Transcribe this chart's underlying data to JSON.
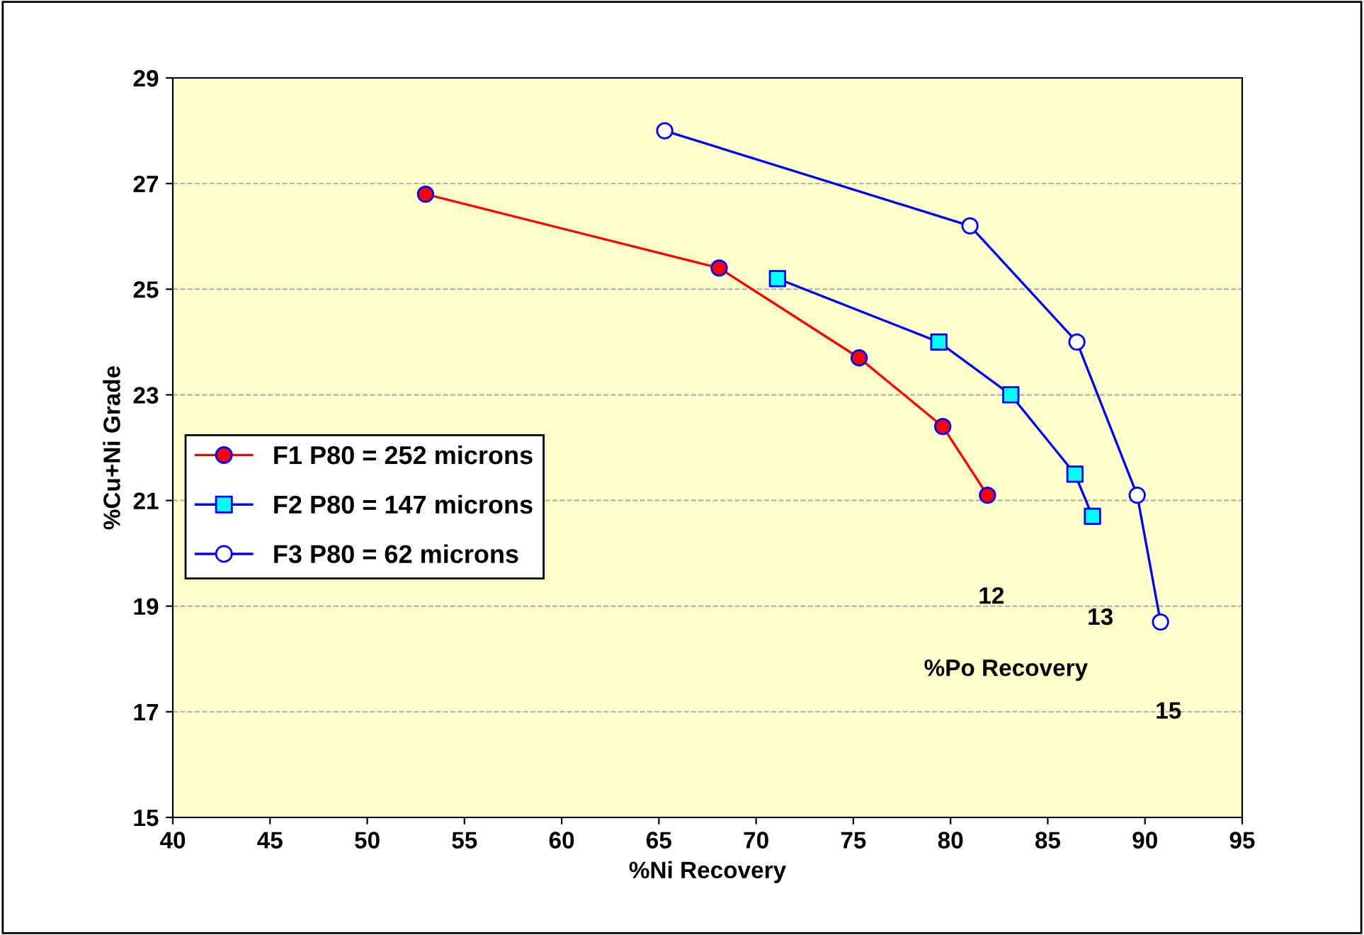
{
  "chart_data": {
    "type": "line",
    "xlabel": "%Ni Recovery",
    "ylabel": "%Cu+Ni Grade",
    "xlim": [
      40,
      95
    ],
    "xticks": [
      40,
      45,
      50,
      55,
      60,
      65,
      70,
      75,
      80,
      85,
      90,
      95
    ],
    "ylim": [
      15,
      29
    ],
    "yticks": [
      15,
      17,
      19,
      21,
      23,
      25,
      27,
      29
    ],
    "grid": "y",
    "legend": "left",
    "series": [
      {
        "name": "F1 P80 = 252 microns",
        "color": "#ff0000",
        "marker": "circle",
        "colors": [
          "#ff0000",
          "#ff0000",
          "#ff0000",
          "#ff0000",
          "#ff0000"
        ],
        "x": [
          53,
          68.1,
          75.3,
          79.6,
          81.9
        ],
        "values": [
          26.8,
          25.4,
          23.7,
          22.4,
          21.1
        ]
      },
      {
        "name": "F2 P80 = 147 microns",
        "color": "#0000ff",
        "marker": "square",
        "colors": [
          "#00ffff",
          "#00ffff",
          "#00ffff",
          "#00ffff",
          "#00ffff"
        ],
        "x": [
          71.1,
          79.4,
          83.1,
          86.4,
          87.3
        ],
        "values": [
          25.2,
          24.0,
          23.0,
          21.5,
          20.7
        ]
      },
      {
        "name": "F3 P80 = 62 microns",
        "color": "#0000ff",
        "marker": "circle",
        "colors": [
          "#ffffff",
          "#ffffff",
          "#ffffff",
          "#ffffff",
          "#ffffff"
        ],
        "x": [
          65.3,
          81.0,
          86.5,
          89.6,
          90.8
        ],
        "values": [
          28.0,
          26.2,
          24.0,
          21.1,
          18.7
        ]
      }
    ],
    "annotations": [
      "12",
      "13",
      "15",
      "%Po Recovery"
    ]
  }
}
